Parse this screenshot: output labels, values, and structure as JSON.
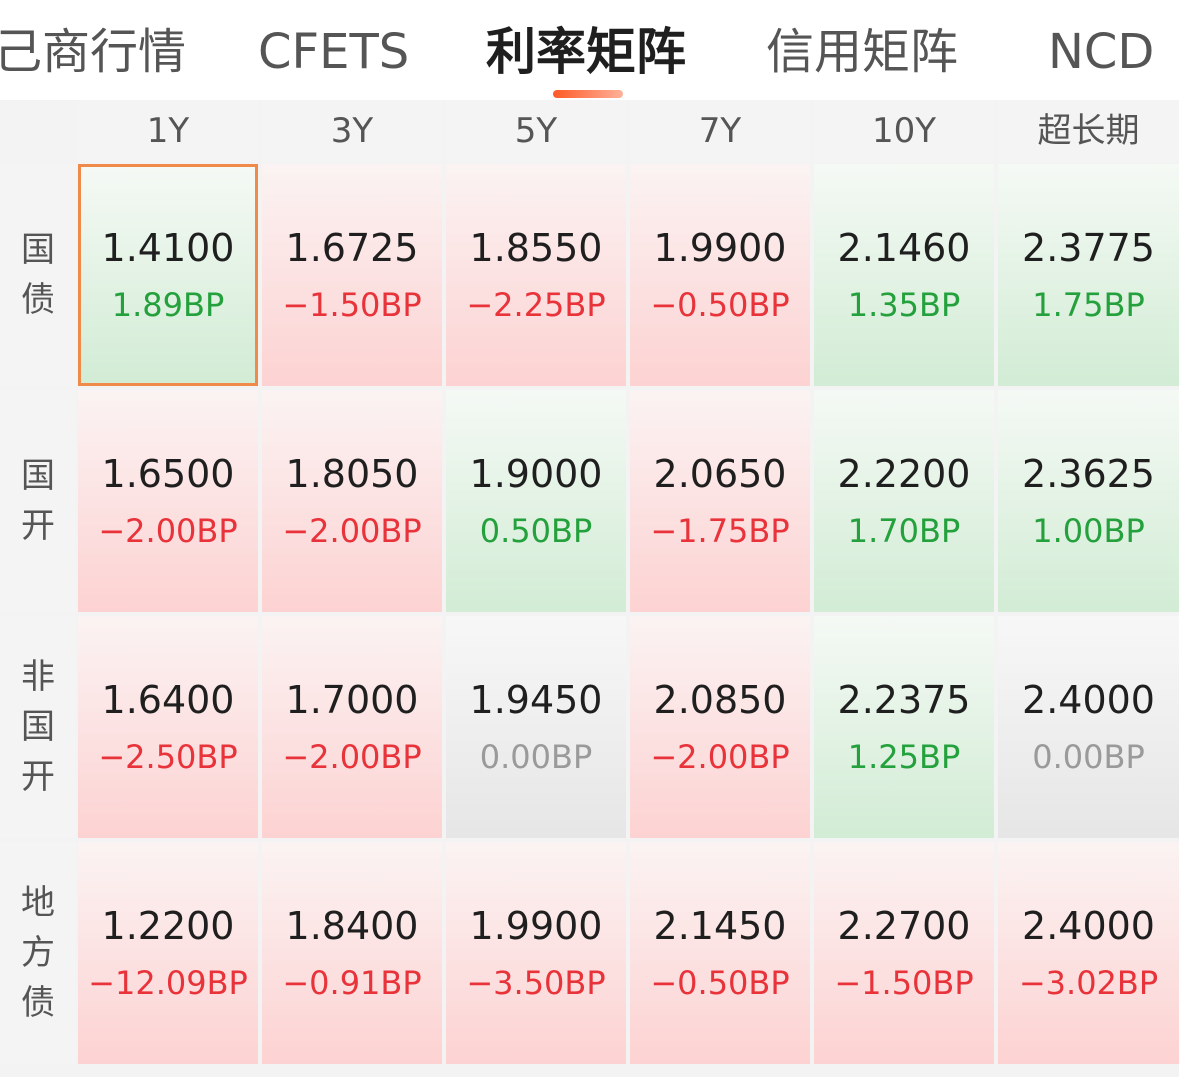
{
  "tabs": [
    {
      "label": "己商行情"
    },
    {
      "label": "CFETS"
    },
    {
      "label": "利率矩阵",
      "active": true
    },
    {
      "label": "信用矩阵"
    },
    {
      "label": "NCD"
    }
  ],
  "columns": [
    "1Y",
    "3Y",
    "5Y",
    "7Y",
    "10Y",
    "超长期"
  ],
  "rows": [
    {
      "label": "国债",
      "cells": [
        {
          "rate": "1.4100",
          "change": "1.89BP",
          "trend": "down",
          "selected": true
        },
        {
          "rate": "1.6725",
          "change": "−1.50BP",
          "trend": "up"
        },
        {
          "rate": "1.8550",
          "change": "−2.25BP",
          "trend": "up"
        },
        {
          "rate": "1.9900",
          "change": "−0.50BP",
          "trend": "up"
        },
        {
          "rate": "2.1460",
          "change": "1.35BP",
          "trend": "down"
        },
        {
          "rate": "2.3775",
          "change": "1.75BP",
          "trend": "down"
        }
      ]
    },
    {
      "label": "国开",
      "cells": [
        {
          "rate": "1.6500",
          "change": "−2.00BP",
          "trend": "up"
        },
        {
          "rate": "1.8050",
          "change": "−2.00BP",
          "trend": "up"
        },
        {
          "rate": "1.9000",
          "change": "0.50BP",
          "trend": "down"
        },
        {
          "rate": "2.0650",
          "change": "−1.75BP",
          "trend": "up"
        },
        {
          "rate": "2.2200",
          "change": "1.70BP",
          "trend": "down"
        },
        {
          "rate": "2.3625",
          "change": "1.00BP",
          "trend": "down"
        }
      ]
    },
    {
      "label": "非国开",
      "cells": [
        {
          "rate": "1.6400",
          "change": "−2.50BP",
          "trend": "up"
        },
        {
          "rate": "1.7000",
          "change": "−2.00BP",
          "trend": "up"
        },
        {
          "rate": "1.9450",
          "change": "0.00BP",
          "trend": "flat"
        },
        {
          "rate": "2.0850",
          "change": "−2.00BP",
          "trend": "up"
        },
        {
          "rate": "2.2375",
          "change": "1.25BP",
          "trend": "down"
        },
        {
          "rate": "2.4000",
          "change": "0.00BP",
          "trend": "flat"
        }
      ]
    },
    {
      "label": "地方债",
      "cells": [
        {
          "rate": "1.2200",
          "change": "−12.09BP",
          "trend": "up"
        },
        {
          "rate": "1.8400",
          "change": "−0.91BP",
          "trend": "up"
        },
        {
          "rate": "1.9900",
          "change": "−3.50BP",
          "trend": "up"
        },
        {
          "rate": "2.1450",
          "change": "−0.50BP",
          "trend": "up"
        },
        {
          "rate": "2.2700",
          "change": "−1.50BP",
          "trend": "up"
        },
        {
          "rate": "2.4000",
          "change": "−3.02BP",
          "trend": "up"
        }
      ]
    }
  ],
  "colors": {
    "rise": "#e8333a",
    "fall": "#24a13c",
    "flat": "#9a9a9a",
    "accent": "#ff5a26",
    "selected_border": "#f08a4b"
  }
}
